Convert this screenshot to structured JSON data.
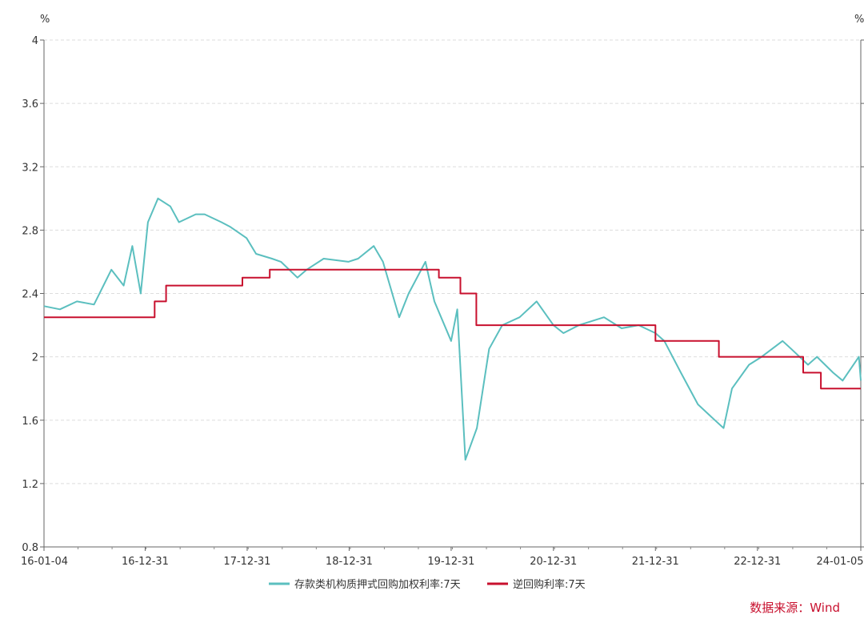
{
  "chart_data": {
    "type": "line",
    "y_unit_left": "%",
    "y_unit_right": "%",
    "ylim": [
      0.8,
      4.0
    ],
    "yticks": [
      "0.8",
      "1.2",
      "1.6",
      "2",
      "2.4",
      "2.8",
      "3.2",
      "3.6",
      "4"
    ],
    "xlim": [
      "2016-01-04",
      "2024-01-05"
    ],
    "xticks": [
      "16-01-04",
      "16-12-31",
      "17-12-31",
      "18-12-31",
      "19-12-31",
      "20-12-31",
      "21-12-31",
      "22-12-31",
      "24-01-05"
    ],
    "grid": "horizontal dashed",
    "legend_position": "bottom",
    "series": [
      {
        "name": "存款类机构质押式回购加权利率:7天",
        "color": "#5bbfbf",
        "x": [
          "2016-01-04",
          "2016-03-01",
          "2016-05-01",
          "2016-07-01",
          "2016-09-01",
          "2016-10-15",
          "2016-11-15",
          "2016-12-15",
          "2017-01-10",
          "2017-02-15",
          "2017-03-31",
          "2017-05-01",
          "2017-06-30",
          "2017-08-01",
          "2017-09-30",
          "2017-11-01",
          "2017-12-29",
          "2018-02-01",
          "2018-03-30",
          "2018-05-01",
          "2018-06-29",
          "2018-08-01",
          "2018-10-01",
          "2018-12-28",
          "2019-02-01",
          "2019-03-29",
          "2019-05-01",
          "2019-06-28",
          "2019-08-01",
          "2019-09-30",
          "2019-11-01",
          "2019-12-31",
          "2020-01-22",
          "2020-02-20",
          "2020-04-01",
          "2020-05-15",
          "2020-07-01",
          "2020-09-01",
          "2020-11-01",
          "2020-12-31",
          "2021-02-05",
          "2021-04-01",
          "2021-06-30",
          "2021-09-01",
          "2021-11-01",
          "2021-12-31",
          "2022-02-01",
          "2022-04-01",
          "2022-06-01",
          "2022-08-01",
          "2022-09-01",
          "2022-10-01",
          "2022-12-01",
          "2023-01-15",
          "2023-03-31",
          "2023-05-01",
          "2023-06-30",
          "2023-08-01",
          "2023-09-28",
          "2023-11-01",
          "2023-12-29",
          "2024-01-05"
        ],
        "values": [
          2.32,
          2.3,
          2.35,
          2.33,
          2.55,
          2.45,
          2.7,
          2.4,
          2.85,
          3.0,
          2.95,
          2.85,
          2.9,
          2.9,
          2.85,
          2.82,
          2.75,
          2.65,
          2.62,
          2.6,
          2.5,
          2.55,
          2.62,
          2.6,
          2.62,
          2.7,
          2.6,
          2.25,
          2.4,
          2.6,
          2.35,
          2.1,
          2.3,
          1.35,
          1.55,
          2.05,
          2.2,
          2.25,
          2.35,
          2.2,
          2.15,
          2.2,
          2.25,
          2.18,
          2.2,
          2.15,
          2.1,
          1.9,
          1.7,
          1.6,
          1.55,
          1.8,
          1.95,
          2.0,
          2.1,
          2.05,
          1.95,
          2.0,
          1.9,
          1.85,
          2.0,
          1.85
        ]
      },
      {
        "name": "逆回购利率:7天",
        "color": "#c8102e",
        "x": [
          "2016-01-04",
          "2017-02-03",
          "2017-02-03",
          "2017-03-16",
          "2017-03-16",
          "2017-12-14",
          "2017-12-14",
          "2018-03-22",
          "2018-03-22",
          "2019-11-17",
          "2019-11-17",
          "2020-02-02",
          "2020-02-02",
          "2020-03-30",
          "2020-03-30",
          "2021-12-31",
          "2021-12-31",
          "2022-08-15",
          "2022-08-15",
          "2023-06-13",
          "2023-06-13",
          "2023-08-15",
          "2023-08-15",
          "2024-01-05"
        ],
        "values": [
          2.25,
          2.25,
          2.35,
          2.35,
          2.45,
          2.45,
          2.5,
          2.5,
          2.55,
          2.55,
          2.5,
          2.5,
          2.4,
          2.4,
          2.2,
          2.2,
          2.1,
          2.1,
          2.0,
          2.0,
          1.9,
          1.9,
          1.8,
          1.8
        ]
      }
    ]
  },
  "legend": {
    "items": [
      {
        "label": "存款类机构质押式回购加权利率:7天",
        "color": "#5bbfbf"
      },
      {
        "label": "逆回购利率:7天",
        "color": "#c8102e"
      }
    ]
  },
  "source": {
    "text": "数据来源：Wind",
    "color": "#c8102e"
  }
}
